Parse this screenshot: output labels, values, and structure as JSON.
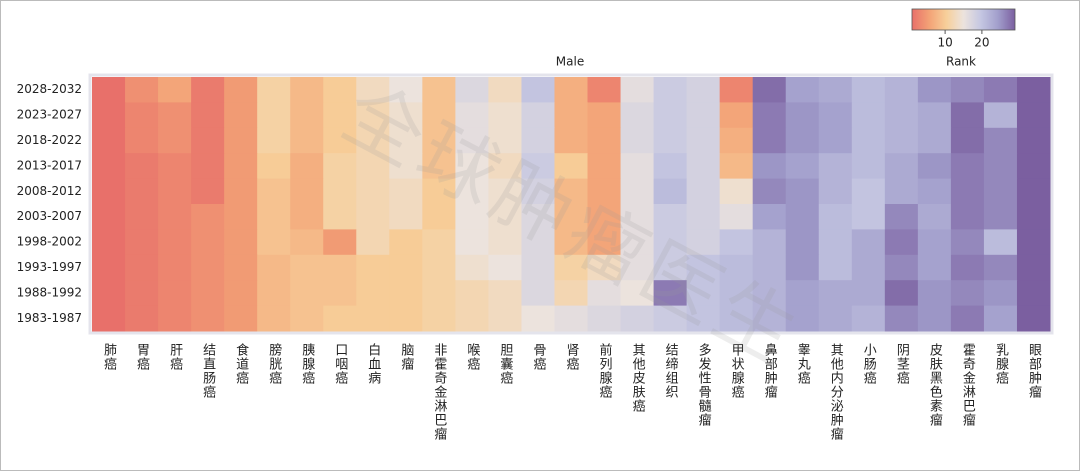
{
  "chart_data": {
    "type": "heatmap",
    "title": "Male",
    "x_categories": [
      "肺癌",
      "胃癌",
      "肝癌",
      "结直肠癌",
      "食道癌",
      "膀胱癌",
      "胰腺癌",
      "口咽癌",
      "白血病",
      "脑瘤",
      "非霍奇金淋巴瘤",
      "喉癌",
      "胆囊癌",
      "骨癌",
      "肾癌",
      "前列腺癌",
      "其他皮肤癌",
      "结缔组织",
      "多发性骨髓瘤",
      "甲状腺癌",
      "鼻部肿瘤",
      "睾丸癌",
      "其他内分泌肿瘤",
      "小肠癌",
      "阴茎癌",
      "皮肤黑色素瘤",
      "霍奇金淋巴瘤",
      "乳腺癌",
      "眼部肿瘤"
    ],
    "y_categories": [
      "2028-2032",
      "2023-2027",
      "2018-2022",
      "2013-2017",
      "2008-2012",
      "2003-2007",
      "1998-2002",
      "1993-1997",
      "1988-1992",
      "1983-1987"
    ],
    "values": [
      [
        1,
        4,
        6,
        2,
        5,
        11,
        8,
        10,
        13,
        15,
        9,
        17,
        13,
        20,
        7,
        3,
        16,
        19,
        18,
        3,
        28,
        24,
        23,
        21,
        22,
        25,
        26,
        27,
        29
      ],
      [
        1,
        3,
        4,
        2,
        5,
        11,
        8,
        10,
        12,
        14,
        9,
        16,
        14,
        18,
        7,
        6,
        17,
        19,
        18,
        6,
        27,
        25,
        24,
        21,
        22,
        23,
        28,
        22,
        29
      ],
      [
        1,
        3,
        4,
        2,
        5,
        11,
        8,
        10,
        12,
        14,
        9,
        16,
        14,
        18,
        7,
        6,
        17,
        19,
        18,
        7,
        27,
        25,
        24,
        21,
        22,
        23,
        28,
        26,
        29
      ],
      [
        1,
        2,
        3,
        2,
        5,
        10,
        7,
        11,
        12,
        14,
        9,
        15,
        13,
        19,
        10,
        6,
        16,
        20,
        18,
        8,
        25,
        24,
        22,
        21,
        23,
        25,
        27,
        26,
        29
      ],
      [
        1,
        2,
        3,
        2,
        5,
        9,
        7,
        11,
        12,
        13,
        10,
        15,
        14,
        18,
        8,
        6,
        16,
        21,
        18,
        14,
        26,
        25,
        22,
        20,
        23,
        24,
        27,
        26,
        29
      ],
      [
        1,
        2,
        3,
        4,
        5,
        9,
        7,
        11,
        12,
        13,
        10,
        15,
        14,
        17,
        8,
        6,
        16,
        19,
        18,
        16,
        24,
        25,
        21,
        20,
        26,
        23,
        27,
        26,
        29
      ],
      [
        1,
        2,
        3,
        4,
        5,
        9,
        8,
        5,
        12,
        10,
        11,
        15,
        14,
        17,
        8,
        6,
        16,
        19,
        18,
        20,
        22,
        25,
        21,
        23,
        27,
        24,
        26,
        21,
        29
      ],
      [
        1,
        2,
        3,
        4,
        5,
        8,
        9,
        9,
        10,
        10,
        11,
        14,
        15,
        17,
        11,
        13,
        16,
        19,
        20,
        21,
        22,
        25,
        21,
        23,
        26,
        24,
        27,
        26,
        29
      ],
      [
        1,
        2,
        3,
        4,
        5,
        8,
        9,
        9,
        10,
        10,
        11,
        12,
        13,
        17,
        12,
        16,
        15,
        27,
        20,
        21,
        22,
        24,
        23,
        23,
        28,
        25,
        26,
        25,
        29
      ],
      [
        1,
        2,
        3,
        4,
        5,
        8,
        9,
        10,
        10,
        10,
        11,
        12,
        13,
        15,
        16,
        17,
        18,
        19,
        20,
        21,
        22,
        24,
        23,
        22,
        26,
        25,
        27,
        24,
        29
      ]
    ],
    "colorscale": [
      "#e8706a",
      "#f3a276",
      "#f7cf9a",
      "#ece3dd",
      "#c5c7e2",
      "#a29fcc",
      "#7b5fa0"
    ],
    "clim": [
      1,
      29
    ],
    "cticks": [
      10,
      20
    ],
    "colorbar_label": "Rank"
  },
  "watermark": "全球肿瘤医生"
}
